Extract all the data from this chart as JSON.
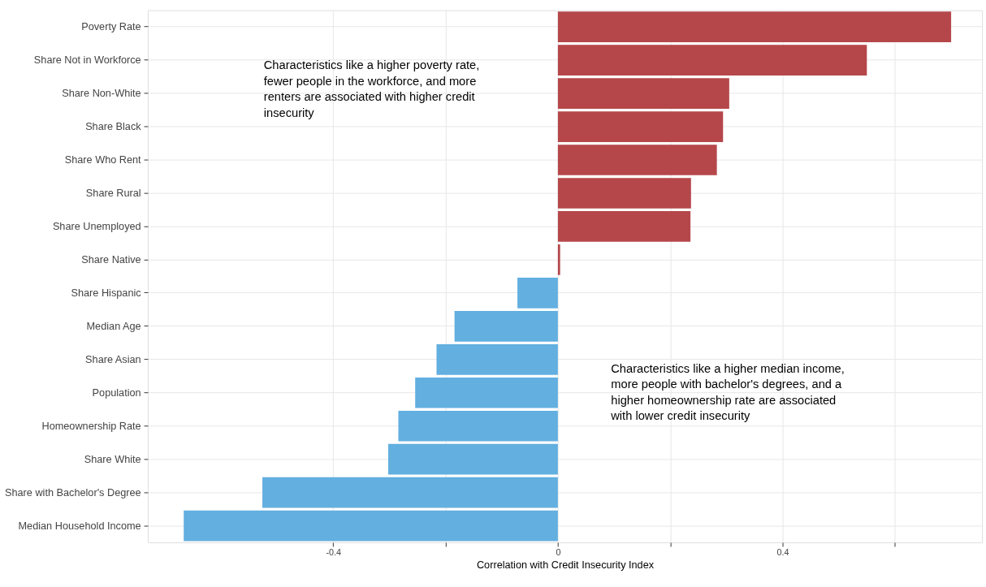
{
  "chart_data": {
    "type": "bar",
    "orientation": "horizontal",
    "xlabel": "Correlation with Credit Insecurity Index",
    "categories": [
      "Poverty Rate",
      "Share Not in Workforce",
      "Share Non-White",
      "Share Black",
      "Share Who Rent",
      "Share Rural",
      "Share Unemployed",
      "Share Native",
      "Share Hispanic",
      "Median Age",
      "Share Asian",
      "Population",
      "Homeownership Rate",
      "Share White",
      "Share with Bachelor's Degree",
      "Median Household Income"
    ],
    "values": [
      0.7,
      0.55,
      0.305,
      0.294,
      0.283,
      0.237,
      0.236,
      0.004,
      -0.072,
      -0.184,
      -0.216,
      -0.254,
      -0.284,
      -0.302,
      -0.526,
      -0.666
    ],
    "colors": [
      "#b5474a",
      "#b5474a",
      "#b5474a",
      "#b5474a",
      "#b5474a",
      "#b5474a",
      "#b5474a",
      "#b5474a",
      "#62afe0",
      "#62afe0",
      "#62afe0",
      "#62afe0",
      "#62afe0",
      "#62afe0",
      "#62afe0",
      "#62afe0"
    ],
    "xlim": [
      -0.73,
      0.755
    ],
    "xticks": [
      -0.4,
      {
        "value": -0.2,
        "label": null
      },
      0,
      {
        "value": 0.2,
        "label": null
      },
      0.4,
      {
        "value": 0.6,
        "label": null
      }
    ],
    "grid": true,
    "annotations": [
      "Characteristics like a higher poverty rate, fewer people in the workforce, and more renters are associated with higher credit insecurity",
      "Characteristics like a higher median income, more people with bachelor's degrees, and a higher homeownership rate are associated with lower credit insecurity"
    ]
  }
}
